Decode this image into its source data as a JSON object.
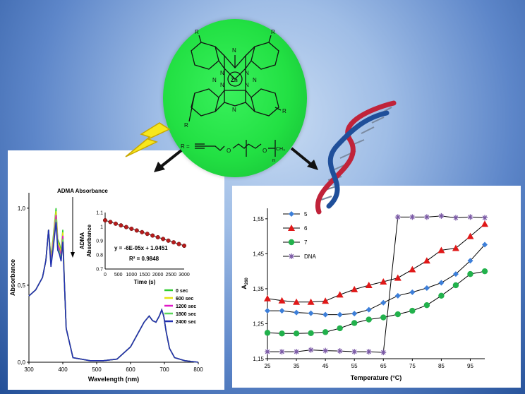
{
  "colors": {
    "background_outer": "#234f97",
    "background_inner": "#c9dcf3",
    "molecule_fill": "#22e043",
    "bolt": "#f7e71c",
    "dna_red": "#c0233a",
    "dna_blue": "#1f4f9a"
  },
  "molecule": {
    "metal": "Zn",
    "n_label": "N",
    "r_label": "R",
    "substituent_prefix": "R =",
    "o_label": "O",
    "ch3_label": "CH₃",
    "n_subscript": "n"
  },
  "icons": [
    "lightning-bolt-icon",
    "dna-helix-icon",
    "arrow-left-icon",
    "arrow-right-icon"
  ],
  "chart_data": [
    {
      "type": "line",
      "title": "",
      "annotation": "ADMA Absorbance",
      "xlabel": "Wavelength (nm)",
      "ylabel": "Absorbance",
      "xlim": [
        300,
        800
      ],
      "ylim": [
        0,
        1.1
      ],
      "xticks": [
        "300",
        "400",
        "500",
        "600",
        "700",
        "800"
      ],
      "yticks": [
        "0,0",
        "0,5",
        "1,0"
      ],
      "legend_position": "right",
      "series": [
        {
          "name": "0 sec",
          "color": "#2ecc2e",
          "decay": 0.0
        },
        {
          "name": "600 sec",
          "color": "#e4e410",
          "decay": 0.02
        },
        {
          "name": "1200 sec",
          "color": "#e018c8",
          "decay": 0.045
        },
        {
          "name": "1800 sec",
          "color": "#5ad65a",
          "decay": 0.07
        },
        {
          "name": "2400 sec",
          "color": "#2230b0",
          "decay": 0.09
        }
      ],
      "base_spectrum": {
        "x": [
          300,
          320,
          340,
          350,
          358,
          365,
          372,
          380,
          385,
          390,
          395,
          400,
          405,
          410,
          430,
          480,
          520,
          560,
          600,
          620,
          640,
          655,
          665,
          675,
          685,
          692,
          698,
          705,
          715,
          730,
          760,
          800
        ],
        "y": [
          0.43,
          0.47,
          0.55,
          0.66,
          0.86,
          0.68,
          0.82,
          1.0,
          0.8,
          0.77,
          0.72,
          0.86,
          0.5,
          0.22,
          0.03,
          0.01,
          0.01,
          0.02,
          0.1,
          0.18,
          0.26,
          0.3,
          0.27,
          0.26,
          0.3,
          0.34,
          0.3,
          0.2,
          0.09,
          0.03,
          0.01,
          0.0
        ]
      },
      "peak_decay_x": [
        360,
        400
      ],
      "inset": {
        "type": "scatter",
        "xlabel": "Time (s)",
        "ylabel_lines": [
          "ADMA",
          "Absorbance"
        ],
        "xlim": [
          0,
          3000
        ],
        "ylim": [
          0.7,
          1.1
        ],
        "xticks": [
          "0",
          "500",
          "1000",
          "1500",
          "2000",
          "2500",
          "3000"
        ],
        "yticks": [
          "0.7",
          "0.8",
          "0.9",
          "1",
          "1.1"
        ],
        "x": [
          0,
          200,
          400,
          600,
          800,
          1000,
          1200,
          1400,
          1600,
          1800,
          2000,
          2200,
          2400,
          2600,
          2800,
          3000
        ],
        "y": [
          1.045,
          1.033,
          1.021,
          1.009,
          0.997,
          0.985,
          0.973,
          0.961,
          0.949,
          0.937,
          0.925,
          0.913,
          0.901,
          0.889,
          0.877,
          0.865
        ],
        "fit_x": [
          0,
          3000
        ],
        "fit_y": [
          1.0451,
          0.8651
        ],
        "equation": "y = -6E-05x + 1.0451",
        "r_squared": "R² = 0.9848"
      }
    },
    {
      "type": "line",
      "title": "",
      "xlabel": "Temperature (°C)",
      "ylabel_main": "A",
      "ylabel_sub": "260",
      "xlim": [
        25,
        100
      ],
      "ylim": [
        1.15,
        1.58
      ],
      "xticks": [
        "25",
        "35",
        "45",
        "55",
        "65",
        "75",
        "85",
        "95"
      ],
      "yticks": [
        "1,15",
        "1,25",
        "1,35",
        "1,45",
        "1,55"
      ],
      "legend_position": "top-left",
      "x": [
        25,
        30,
        35,
        40,
        45,
        50,
        55,
        60,
        65,
        70,
        75,
        80,
        85,
        90,
        95,
        100
      ],
      "series": [
        {
          "name": "5",
          "color": "#3d7fd9",
          "marker": "diamond",
          "values": [
            1.287,
            1.287,
            1.282,
            1.28,
            1.276,
            1.276,
            1.279,
            1.29,
            1.31,
            1.33,
            1.34,
            1.352,
            1.367,
            1.392,
            1.43,
            1.476
          ]
        },
        {
          "name": "6",
          "color": "#e01818",
          "marker": "triangle",
          "values": [
            1.322,
            1.316,
            1.312,
            1.312,
            1.315,
            1.333,
            1.348,
            1.36,
            1.37,
            1.381,
            1.405,
            1.43,
            1.46,
            1.466,
            1.5,
            1.535
          ]
        },
        {
          "name": "7",
          "color": "#22b14c",
          "marker": "circle",
          "values": [
            1.224,
            1.222,
            1.222,
            1.223,
            1.226,
            1.237,
            1.252,
            1.262,
            1.268,
            1.277,
            1.287,
            1.303,
            1.33,
            1.36,
            1.392,
            1.4
          ]
        },
        {
          "name": "DNA",
          "color": "#7b5aa6",
          "marker": "star",
          "values": [
            1.17,
            1.17,
            1.17,
            1.175,
            1.173,
            1.172,
            1.17,
            1.17,
            1.168,
            1.555,
            1.555,
            1.555,
            1.558,
            1.553,
            1.555,
            1.553
          ]
        }
      ]
    }
  ]
}
